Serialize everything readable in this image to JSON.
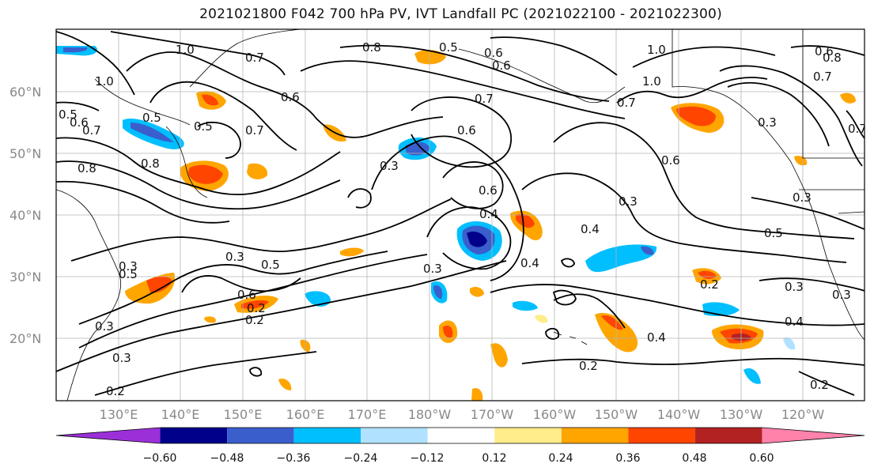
{
  "title": "2021021800 F042 700 hPa PV, IVT Landfall PC (2021022100 - 2021022300)",
  "lat_labels": [
    "60°N",
    "50°N",
    "40°N",
    "30°N",
    "20°N"
  ],
  "lon_labels": [
    "130°E",
    "140°E",
    "150°E",
    "160°E",
    "170°E",
    "180°W",
    "170°W",
    "160°W",
    "150°W",
    "140°W",
    "130°W",
    "120°W"
  ],
  "colorbar": {
    "ticks": [
      "−0.60",
      "−0.48",
      "−0.36",
      "−0.24",
      "−0.12",
      "0.12",
      "0.24",
      "0.36",
      "0.48",
      "0.60"
    ],
    "colors": [
      "#9b30d9",
      "#00008b",
      "#3a5fcd",
      "#00bfff",
      "#b0e2ff",
      "#ffffff",
      "#ffec8b",
      "#ffa500",
      "#ff4500",
      "#b22222",
      "#ff82ab"
    ]
  },
  "contour_labels": [
    "1.0",
    "0.7",
    "0.8",
    "0.5",
    "0.6",
    "1.0",
    "0.6",
    "0.5",
    "0.7",
    "0.8",
    "0.6",
    "0.5",
    "0.7",
    "0.3",
    "0.6",
    "0.7",
    "0.8",
    "1.0",
    "1.0",
    "0.6",
    "0.3",
    "0.6",
    "0.4",
    "0.5",
    "0.4",
    "0.3",
    "0.3",
    "0.5",
    "0.3",
    "0.4",
    "0.5",
    "0.6",
    "0.2",
    "0.3",
    "0.3",
    "0.2",
    "0.4",
    "0.2",
    "0.4",
    "0.3",
    "0.2",
    "0.2",
    "0.3",
    "0.7",
    "0.6",
    "0.8",
    "0.7",
    "0.3",
    "0.7",
    "0.5",
    "0.6",
    "0.2",
    "0.3"
  ]
}
